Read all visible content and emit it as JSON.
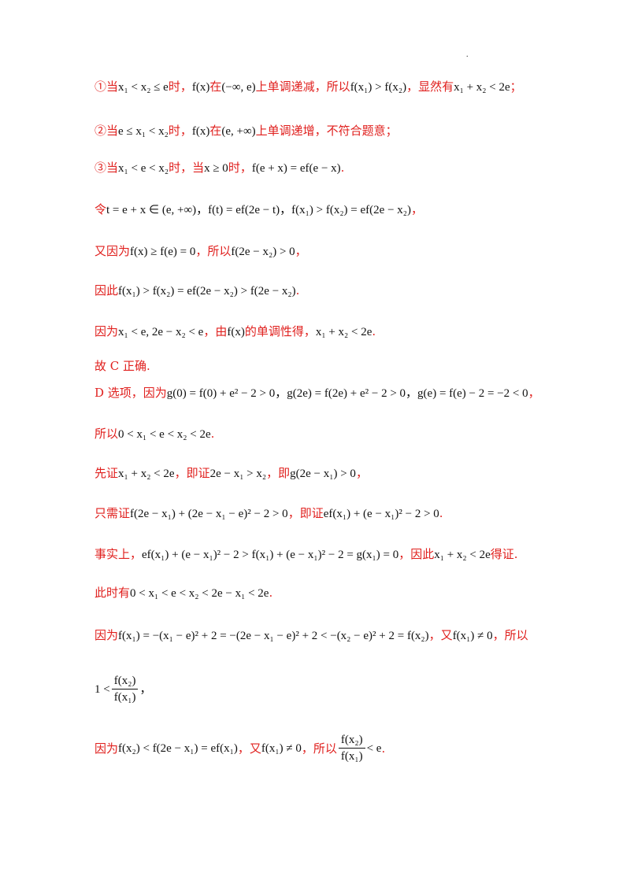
{
  "corner_mark": ".",
  "lines": [
    {
      "t1": "①当",
      "m1": "x₁ < x₂ ≤ e",
      "t2": "时，",
      "m2": "f(x)",
      "t3": "在",
      "m3": "(−∞, e)",
      "t4": "上单调递减，所以",
      "m4": "f(x₁) > f(x₂)",
      "t5": "，显然有",
      "m5": "x₁ + x₂ < 2e",
      "t6": "；"
    },
    {
      "t1": "②当",
      "m1": "e ≤ x₁ < x₂",
      "t2": "时，",
      "m2": "f(x)",
      "t3": "在",
      "m3": "(e, +∞)",
      "t4": "上单调递增，不符合题意；"
    },
    {
      "t1": "③当",
      "m1": "x₁ < e < x₂",
      "t2": "时，当",
      "m2": "x ≥ 0",
      "t3": "时，",
      "m3": "f(e + x) = ef(e − x)",
      "t4": "."
    },
    {
      "t1": "令",
      "m1": "t = e + x ∈ (e, +∞)，f(t) = ef(2e − t)，f(x₁) > f(x₂) = ef(2e − x₂)",
      "t2": "，"
    },
    {
      "t1": "又因为",
      "m1": "f(x) ≥ f(e) = 0",
      "t2": "，所以",
      "m2": "f(2e − x₂) > 0",
      "t3": "，"
    },
    {
      "t1": "因此",
      "m1": "f(x₁) > f(x₂) = ef(2e − x₂) > f(2e − x₂)",
      "t2": "."
    },
    {
      "t1": "因为",
      "m1": "x₁ < e, 2e − x₂ < e",
      "t2": "，由",
      "m2": "f(x)",
      "t3": "的单调性得，",
      "m3": "x₁ + x₂ < 2e",
      "t4": "."
    },
    {
      "t1": "故 C 正确."
    },
    {
      "t1": "D 选项，因为",
      "m1": "g(0) = f(0) + e² − 2 > 0，g(2e) = f(2e) + e² − 2 > 0，g(e) = f(e) − 2 = −2 < 0",
      "t2": "，"
    },
    {
      "t1": "所以",
      "m1": "0 < x₁ < e < x₂ < 2e",
      "t2": "."
    },
    {
      "t1": "先证",
      "m1": "x₁ + x₂ < 2e",
      "t2": "，即证",
      "m2": "2e − x₁ > x₂",
      "t3": "，即",
      "m3": "g(2e − x₁) > 0",
      "t4": "，"
    },
    {
      "t1": "只需证",
      "m1": "f(2e − x₁) + (2e − x₁ − e)² − 2 > 0",
      "t2": "，即证",
      "m2": "ef(x₁) + (e − x₁)² − 2 > 0",
      "t3": "."
    },
    {
      "t1": "事实上，",
      "m1": "ef(x₁) + (e − x₁)² − 2 > f(x₁) + (e − x₁)² − 2 = g(x₁) = 0",
      "t2": "，因此",
      "m2": "x₁ + x₂ < 2e",
      "t3": "得证."
    },
    {
      "t1": "此时有",
      "m1": "0 < x₁ < e < x₂ < 2e − x₁ < 2e",
      "t2": "."
    },
    {
      "t1": "因为",
      "m1": "f(x₁) = −(x₁ − e)² + 2 = −(2e − x₁ − e)² + 2 < −(x₂ − e)² + 2 = f(x₂)",
      "t2": "，又",
      "m2": "f(x₁) ≠ 0",
      "t3": "，所以"
    }
  ],
  "frac_line": {
    "lead": "1 <",
    "num": "f(x₂)",
    "den": "f(x₁)",
    "tail": "，"
  },
  "last_line": {
    "t1": "因为",
    "m1": "f(x₂) < f(2e − x₁) = ef(x₁)",
    "t2": "，又",
    "m2": "f(x₁) ≠ 0",
    "t3": "，所以",
    "num": "f(x₂)",
    "den": "f(x₁)",
    "m3": "< e",
    "t4": "."
  }
}
